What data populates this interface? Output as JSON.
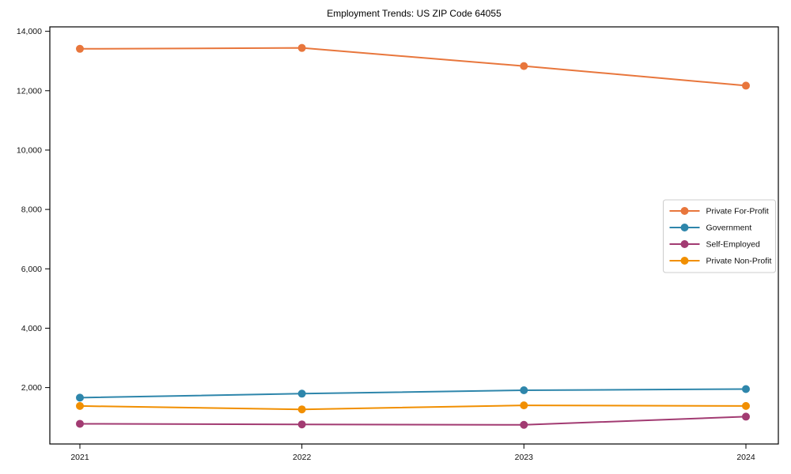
{
  "title": "Employment Trends: US ZIP Code 64055",
  "chart_data": {
    "type": "line",
    "title": "Employment Trends: US ZIP Code 64055",
    "categories": [
      "2021",
      "2022",
      "2023",
      "2024"
    ],
    "series": [
      {
        "name": "Private For-Profit",
        "color": "#E8763C",
        "values": [
          13410,
          13440,
          12830,
          12170
        ]
      },
      {
        "name": "Government",
        "color": "#2E86AB",
        "values": [
          1660,
          1795,
          1910,
          1950
        ]
      },
      {
        "name": "Self-Employed",
        "color": "#A23B72",
        "values": [
          780,
          760,
          745,
          1020
        ]
      },
      {
        "name": "Private Non-Profit",
        "color": "#F18F01",
        "values": [
          1380,
          1265,
          1400,
          1380
        ]
      }
    ],
    "xlabel": "",
    "ylabel": "",
    "ylim": [
      100,
      14150
    ],
    "yticks": [
      2000,
      4000,
      6000,
      8000,
      10000,
      12000,
      14000
    ],
    "ytick_labels": [
      "2,000",
      "4,000",
      "6,000",
      "8,000",
      "10,000",
      "12,000",
      "14,000"
    ],
    "grid": false,
    "legend_position": "center-right",
    "marker": "circle",
    "axis_color": "#000000",
    "legend_border_color": "#cccccc",
    "background_color": "#ffffff"
  }
}
